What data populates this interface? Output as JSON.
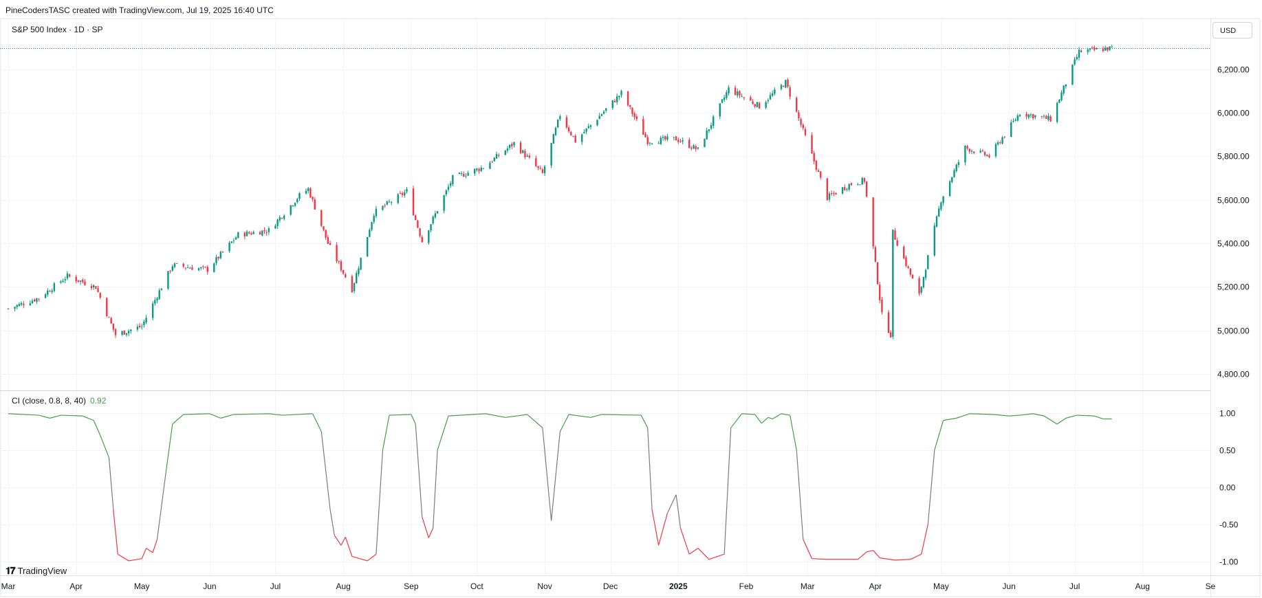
{
  "header": {
    "attribution": "PineCodersTASC created with TradingView.com, Jul 19, 2025 16:40 UTC"
  },
  "main_pane": {
    "symbol_label": "S&P 500 Index · 1D · SP",
    "currency": "USD"
  },
  "indicator_pane": {
    "label": "CI (close, 0.8, 8, 40)",
    "value": "0.92"
  },
  "footer": {
    "logo_text": "TradingView"
  },
  "chart_data": [
    {
      "type": "candlestick",
      "ylim": [
        4750,
        6360
      ],
      "y_ticks": [
        4800,
        5000,
        5200,
        5400,
        5600,
        5800,
        6000,
        6200
      ],
      "y_tick_labels": [
        "4,800.00",
        "5,000.00",
        "5,200.00",
        "5,400.00",
        "5,600.00",
        "5,800.00",
        "6,000.00",
        "6,200.00"
      ],
      "last_price_line": 6297,
      "x_labels": [
        "Mar",
        "Apr",
        "May",
        "Jun",
        "Jul",
        "Aug",
        "Sep",
        "Oct",
        "Nov",
        "Dec",
        "2025",
        "Feb",
        "Mar",
        "Apr",
        "May",
        "Jun",
        "Jul",
        "Aug",
        "Se"
      ],
      "close_path": [
        [
          "2024-03-01",
          5100
        ],
        [
          "2024-03-15",
          5150
        ],
        [
          "2024-03-28",
          5250
        ],
        [
          "2024-04-10",
          5200
        ],
        [
          "2024-04-19",
          4980
        ],
        [
          "2024-05-01",
          5020
        ],
        [
          "2024-05-15",
          5300
        ],
        [
          "2024-05-31",
          5280
        ],
        [
          "2024-06-14",
          5440
        ],
        [
          "2024-06-28",
          5460
        ],
        [
          "2024-07-12",
          5620
        ],
        [
          "2024-07-16",
          5650
        ],
        [
          "2024-07-25",
          5400
        ],
        [
          "2024-08-05",
          5190
        ],
        [
          "2024-08-15",
          5540
        ],
        [
          "2024-08-30",
          5640
        ],
        [
          "2024-09-06",
          5410
        ],
        [
          "2024-09-20",
          5700
        ],
        [
          "2024-10-04",
          5750
        ],
        [
          "2024-10-18",
          5860
        ],
        [
          "2024-10-31",
          5720
        ],
        [
          "2024-11-08",
          5990
        ],
        [
          "2024-11-15",
          5870
        ],
        [
          "2024-12-06",
          6090
        ],
        [
          "2024-12-18",
          5870
        ],
        [
          "2024-12-31",
          5880
        ],
        [
          "2025-01-10",
          5830
        ],
        [
          "2025-01-24",
          6110
        ],
        [
          "2025-02-07",
          6030
        ],
        [
          "2025-02-19",
          6140
        ],
        [
          "2025-03-10",
          5610
        ],
        [
          "2025-03-20",
          5670
        ],
        [
          "2025-03-27",
          5690
        ],
        [
          "2025-04-04",
          5070
        ],
        [
          "2025-04-08",
          4980
        ],
        [
          "2025-04-09",
          5450
        ],
        [
          "2025-04-21",
          5160
        ],
        [
          "2025-05-01",
          5600
        ],
        [
          "2025-05-12",
          5840
        ],
        [
          "2025-05-23",
          5800
        ],
        [
          "2025-06-06",
          6000
        ],
        [
          "2025-06-20",
          5970
        ],
        [
          "2025-07-03",
          6280
        ],
        [
          "2025-07-18",
          6297
        ]
      ]
    },
    {
      "type": "line",
      "series": [
        {
          "name": "CI (close, 0.8, 8, 40)",
          "last_value": 0.92
        }
      ],
      "ylim": [
        -1.12,
        1.1
      ],
      "y_ticks": [
        -1.0,
        -0.5,
        0.0,
        0.5,
        1.0
      ],
      "y_tick_labels": [
        "-1.00",
        "-0.50",
        "0.00",
        "0.50",
        "1.00"
      ],
      "colors": {
        "high": "#43a047",
        "mid": "#787b86",
        "low": "#f23645"
      },
      "points": [
        [
          "2024-03-01",
          0.99
        ],
        [
          "2024-03-15",
          0.97
        ],
        [
          "2024-03-20",
          0.93
        ],
        [
          "2024-03-25",
          0.97
        ],
        [
          "2024-04-04",
          0.96
        ],
        [
          "2024-04-09",
          0.9
        ],
        [
          "2024-04-12",
          0.7
        ],
        [
          "2024-04-16",
          0.4
        ],
        [
          "2024-04-18",
          -0.3
        ],
        [
          "2024-04-20",
          -0.9
        ],
        [
          "2024-04-25",
          -0.99
        ],
        [
          "2024-05-01",
          -0.96
        ],
        [
          "2024-05-03",
          -0.82
        ],
        [
          "2024-05-06",
          -0.88
        ],
        [
          "2024-05-08",
          -0.7
        ],
        [
          "2024-05-12",
          0.2
        ],
        [
          "2024-05-15",
          0.85
        ],
        [
          "2024-05-20",
          0.98
        ],
        [
          "2024-06-01",
          0.99
        ],
        [
          "2024-06-06",
          0.93
        ],
        [
          "2024-06-12",
          0.98
        ],
        [
          "2024-06-28",
          0.99
        ],
        [
          "2024-07-04",
          0.97
        ],
        [
          "2024-07-18",
          0.99
        ],
        [
          "2024-07-22",
          0.75
        ],
        [
          "2024-07-26",
          -0.3
        ],
        [
          "2024-07-28",
          -0.65
        ],
        [
          "2024-07-31",
          -0.78
        ],
        [
          "2024-08-02",
          -0.67
        ],
        [
          "2024-08-05",
          -0.93
        ],
        [
          "2024-08-12",
          -0.99
        ],
        [
          "2024-08-16",
          -0.9
        ],
        [
          "2024-08-19",
          0.5
        ],
        [
          "2024-08-22",
          0.97
        ],
        [
          "2024-09-01",
          0.98
        ],
        [
          "2024-09-03",
          0.85
        ],
        [
          "2024-09-06",
          -0.4
        ],
        [
          "2024-09-09",
          -0.68
        ],
        [
          "2024-09-11",
          -0.55
        ],
        [
          "2024-09-13",
          0.5
        ],
        [
          "2024-09-18",
          0.96
        ],
        [
          "2024-10-05",
          0.99
        ],
        [
          "2024-10-14",
          0.94
        ],
        [
          "2024-10-24",
          0.98
        ],
        [
          "2024-10-31",
          0.8
        ],
        [
          "2024-11-04",
          -0.45
        ],
        [
          "2024-11-08",
          0.75
        ],
        [
          "2024-11-12",
          0.98
        ],
        [
          "2024-11-22",
          0.94
        ],
        [
          "2024-11-27",
          0.98
        ],
        [
          "2024-12-15",
          0.97
        ],
        [
          "2024-12-18",
          0.8
        ],
        [
          "2024-12-20",
          -0.3
        ],
        [
          "2024-12-23",
          -0.78
        ],
        [
          "2024-12-27",
          -0.35
        ],
        [
          "2024-12-31",
          -0.1
        ],
        [
          "2025-01-02",
          -0.55
        ],
        [
          "2025-01-06",
          -0.9
        ],
        [
          "2025-01-10",
          -0.82
        ],
        [
          "2025-01-15",
          -0.97
        ],
        [
          "2025-01-22",
          -0.9
        ],
        [
          "2025-01-25",
          0.8
        ],
        [
          "2025-01-30",
          0.99
        ],
        [
          "2025-02-05",
          0.98
        ],
        [
          "2025-02-08",
          0.86
        ],
        [
          "2025-02-11",
          0.94
        ],
        [
          "2025-02-13",
          0.92
        ],
        [
          "2025-02-17",
          0.99
        ],
        [
          "2025-02-21",
          0.97
        ],
        [
          "2025-02-24",
          0.5
        ],
        [
          "2025-02-27",
          -0.7
        ],
        [
          "2025-03-03",
          -0.96
        ],
        [
          "2025-03-10",
          -0.97
        ],
        [
          "2025-03-24",
          -0.97
        ],
        [
          "2025-03-28",
          -0.87
        ],
        [
          "2025-03-31",
          -0.85
        ],
        [
          "2025-04-03",
          -0.95
        ],
        [
          "2025-04-10",
          -0.98
        ],
        [
          "2025-04-17",
          -0.97
        ],
        [
          "2025-04-22",
          -0.9
        ],
        [
          "2025-04-25",
          -0.5
        ],
        [
          "2025-04-28",
          0.5
        ],
        [
          "2025-05-02",
          0.9
        ],
        [
          "2025-05-08",
          0.93
        ],
        [
          "2025-05-14",
          0.99
        ],
        [
          "2025-05-25",
          0.98
        ],
        [
          "2025-06-01",
          0.96
        ],
        [
          "2025-06-06",
          0.97
        ],
        [
          "2025-06-12",
          0.99
        ],
        [
          "2025-06-17",
          0.96
        ],
        [
          "2025-06-23",
          0.85
        ],
        [
          "2025-06-27",
          0.93
        ],
        [
          "2025-07-02",
          0.97
        ],
        [
          "2025-07-10",
          0.96
        ],
        [
          "2025-07-14",
          0.92
        ],
        [
          "2025-07-18",
          0.92
        ]
      ]
    }
  ]
}
